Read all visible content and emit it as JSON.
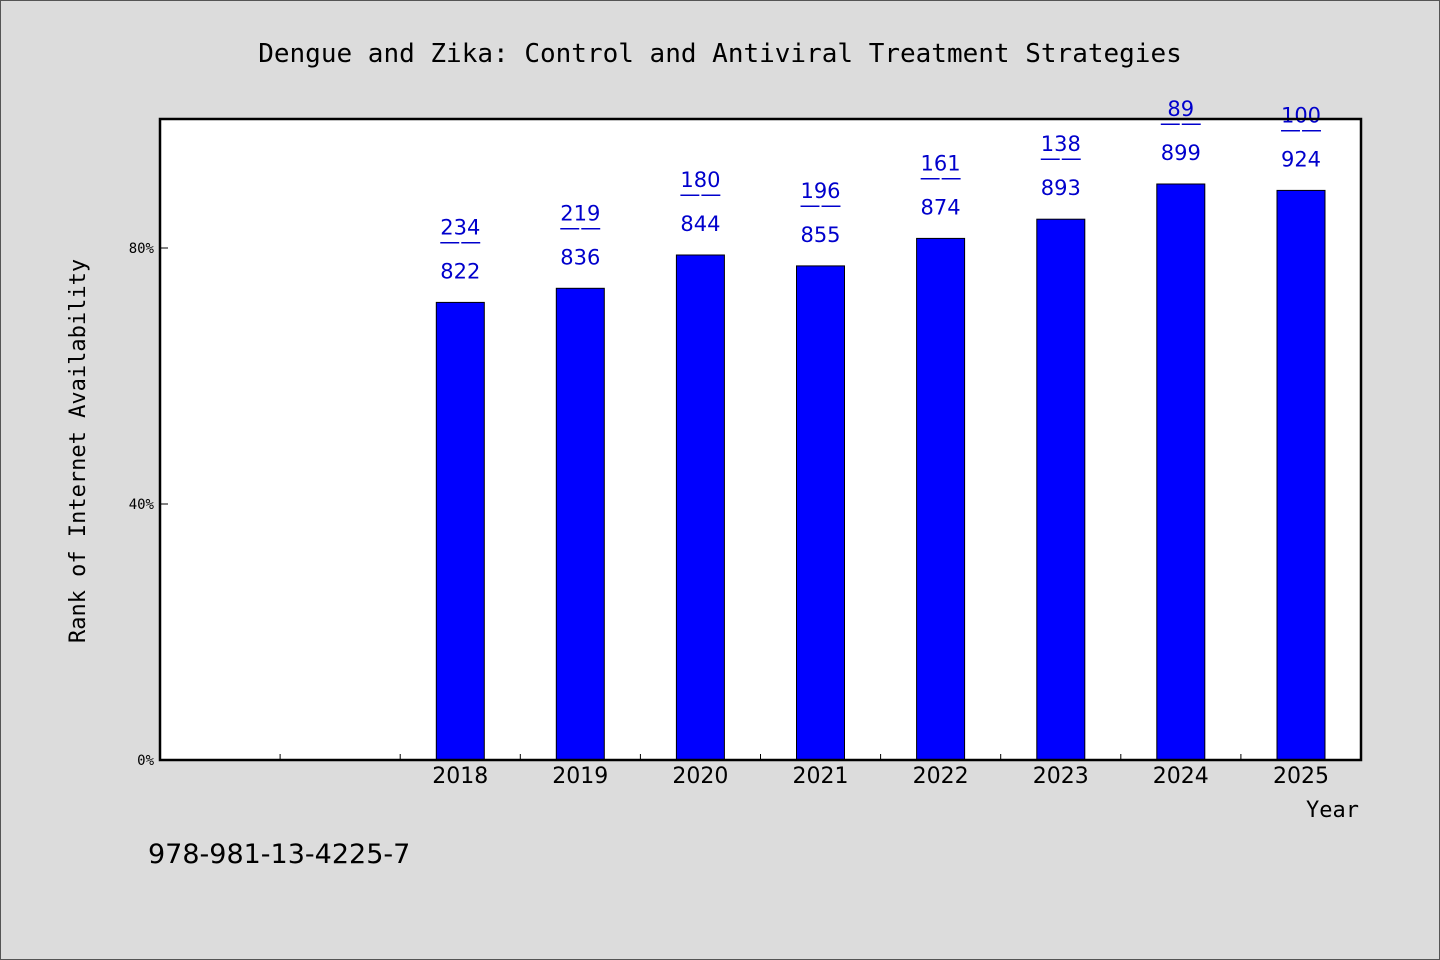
{
  "chart_data": {
    "type": "bar",
    "title": "Dengue and Zika: Control and Antiviral Treatment Strategies",
    "xlabel": "Year",
    "ylabel": "Rank of Internet Availability",
    "categories": [
      "2018",
      "2019",
      "2020",
      "2021",
      "2022",
      "2023",
      "2024",
      "2025"
    ],
    "values": [
      71.5,
      73.7,
      78.9,
      77.2,
      81.5,
      84.5,
      90.0,
      89.0
    ],
    "labels_top": [
      "234",
      "219",
      "180",
      "196",
      "161",
      "138",
      "89",
      "100"
    ],
    "labels_sep": "——",
    "labels_bottom": [
      "822",
      "836",
      "844",
      "855",
      "874",
      "893",
      "899",
      "924"
    ],
    "ylim": [
      0,
      100
    ],
    "yticks": [
      0,
      40,
      80
    ],
    "ytick_labels": [
      "0%",
      "40%",
      "80%"
    ],
    "grid": false,
    "bar_color": "#0000ff",
    "label_color": "#0000cc"
  },
  "footnote": "978-981-13-4225-7"
}
